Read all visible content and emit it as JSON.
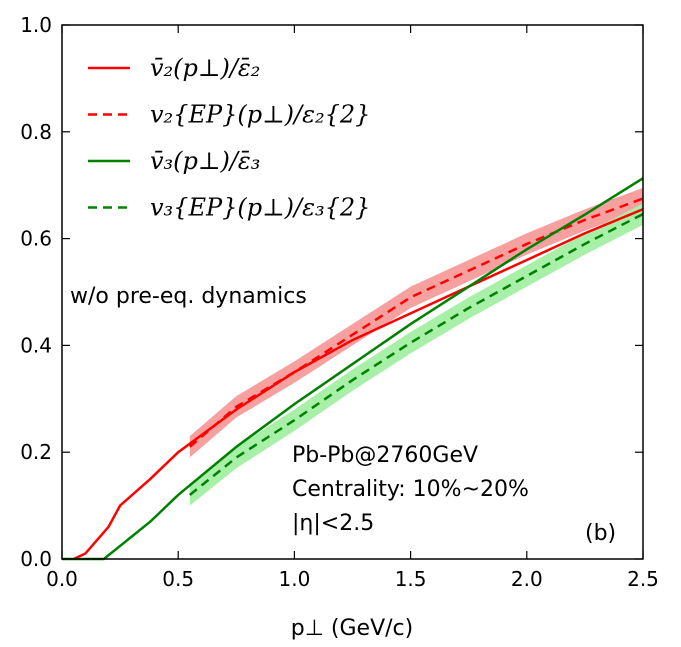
{
  "chart_data": {
    "type": "line",
    "xlabel": "p⊥ (GeV/c)",
    "ylabel": "",
    "xlim": [
      0,
      2.5
    ],
    "ylim": [
      0,
      1.0
    ],
    "xticks": [
      "0.0",
      "0.5",
      "1.0",
      "1.5",
      "2.0",
      "2.5"
    ],
    "yticks": [
      "0.0",
      "0.2",
      "0.4",
      "0.6",
      "0.8",
      "1.0"
    ],
    "legend_placement": "top-left",
    "annotations": [
      "w/o pre-eq. dynamics",
      "Pb-Pb@2760GeV",
      "Centrality: 10%~20%",
      "|η|<2.5",
      "(b)"
    ],
    "series": [
      {
        "name": "v̄₂(p⊥)/ε̄₂",
        "color": "#ff0000",
        "style": "solid",
        "x": [
          0.05,
          0.1,
          0.2,
          0.25,
          0.38,
          0.5,
          0.75,
          1.0,
          1.25,
          1.5,
          1.75,
          2.0,
          2.25,
          2.5
        ],
        "y": [
          0,
          0.01,
          0.06,
          0.1,
          0.15,
          0.2,
          0.28,
          0.35,
          0.41,
          0.46,
          0.51,
          0.56,
          0.61,
          0.655
        ]
      },
      {
        "name": "v₂{EP}(p⊥)/ε₂{2}",
        "color": "#ff0000",
        "style": "dashed",
        "band_color": "#f7a0a0",
        "band_halfwidth": 0.02,
        "x": [
          0.55,
          0.75,
          1.0,
          1.25,
          1.5,
          1.75,
          2.0,
          2.25,
          2.5
        ],
        "y": [
          0.21,
          0.285,
          0.35,
          0.42,
          0.49,
          0.54,
          0.59,
          0.635,
          0.675
        ]
      },
      {
        "name": "v̄₃(p⊥)/ε̄₃",
        "color": "#008000",
        "style": "solid",
        "x": [
          0,
          0.18,
          0.38,
          0.5,
          0.75,
          1.0,
          1.25,
          1.5,
          1.75,
          2.0,
          2.25,
          2.5
        ],
        "y": [
          0,
          0,
          0.07,
          0.12,
          0.21,
          0.29,
          0.365,
          0.44,
          0.51,
          0.58,
          0.645,
          0.713
        ]
      },
      {
        "name": "v₃{EP}(p⊥)/ε₃{2}",
        "color": "#008000",
        "style": "dashed",
        "band_color": "#a8f0a8",
        "band_halfwidth": 0.02,
        "x": [
          0.55,
          0.75,
          1.0,
          1.25,
          1.5,
          1.75,
          2.0,
          2.25,
          2.5
        ],
        "y": [
          0.12,
          0.19,
          0.26,
          0.335,
          0.405,
          0.47,
          0.53,
          0.59,
          0.646
        ]
      }
    ]
  }
}
